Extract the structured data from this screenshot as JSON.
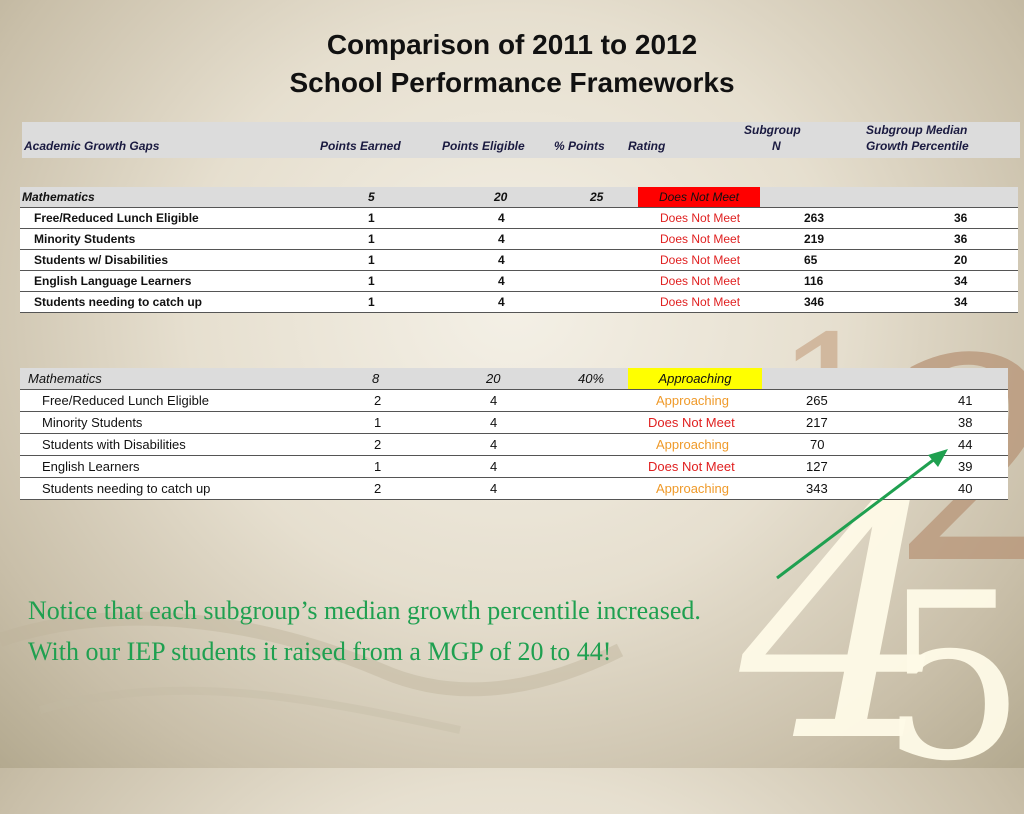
{
  "title": {
    "line1": "Comparison of 2011 to 2012",
    "line2": "School Performance Frameworks"
  },
  "header": {
    "area": "Academic Growth Gaps",
    "points_earned": "Points Earned",
    "points_eligible": "Points Eligible",
    "pct_points": "% Points",
    "rating": "Rating",
    "subgroup_n_1": "Subgroup",
    "subgroup_n_2": "N",
    "mgp_1": "Subgroup Median",
    "mgp_2": "Growth Percentile"
  },
  "table_2011": {
    "main": {
      "label": "Mathematics",
      "earned": "5",
      "eligible": "20",
      "pct": "25",
      "rating": "Does Not Meet"
    },
    "rows": [
      {
        "label": "Free/Reduced Lunch Eligible",
        "earned": "1",
        "eligible": "4",
        "rating": "Does Not Meet",
        "n": "263",
        "mgp": "36"
      },
      {
        "label": "Minority Students",
        "earned": "1",
        "eligible": "4",
        "rating": "Does Not Meet",
        "n": "219",
        "mgp": "36"
      },
      {
        "label": "Students w/ Disabilities",
        "earned": "1",
        "eligible": "4",
        "rating": "Does Not Meet",
        "n": "65",
        "mgp": "20"
      },
      {
        "label": "English Language Learners",
        "earned": "1",
        "eligible": "4",
        "rating": "Does Not Meet",
        "n": "116",
        "mgp": "34"
      },
      {
        "label": "Students needing to catch up",
        "earned": "1",
        "eligible": "4",
        "rating": "Does Not Meet",
        "n": "346",
        "mgp": "34"
      }
    ]
  },
  "table_2012": {
    "main": {
      "label": "Mathematics",
      "earned": "8",
      "eligible": "20",
      "pct": "40%",
      "rating": "Approaching"
    },
    "rows": [
      {
        "label": "Free/Reduced Lunch Eligible",
        "earned": "2",
        "eligible": "4",
        "rating": "Approaching",
        "n": "265",
        "mgp": "41"
      },
      {
        "label": "Minority Students",
        "earned": "1",
        "eligible": "4",
        "rating": "Does Not Meet",
        "n": "217",
        "mgp": "38"
      },
      {
        "label": "Students with Disabilities",
        "earned": "2",
        "eligible": "4",
        "rating": "Approaching",
        "n": "70",
        "mgp": "44"
      },
      {
        "label": "English Learners",
        "earned": "1",
        "eligible": "4",
        "rating": "Does Not Meet",
        "n": "127",
        "mgp": "39"
      },
      {
        "label": "Students needing to catch up",
        "earned": "2",
        "eligible": "4",
        "rating": "Approaching",
        "n": "343",
        "mgp": "40"
      }
    ]
  },
  "note": {
    "line1": "Notice that each subgroup’s median growth percentile increased.",
    "line2": "With our IEP students it raised from a MGP of 20 to 44!"
  },
  "decor": {
    "digit_a": "1",
    "digit_b": "2",
    "digit_c": "4",
    "digit_d": "5"
  },
  "colors": {
    "arrow": "#1fa050",
    "does_not_meet": "#e02020",
    "approaching": "#ef9a2a"
  }
}
